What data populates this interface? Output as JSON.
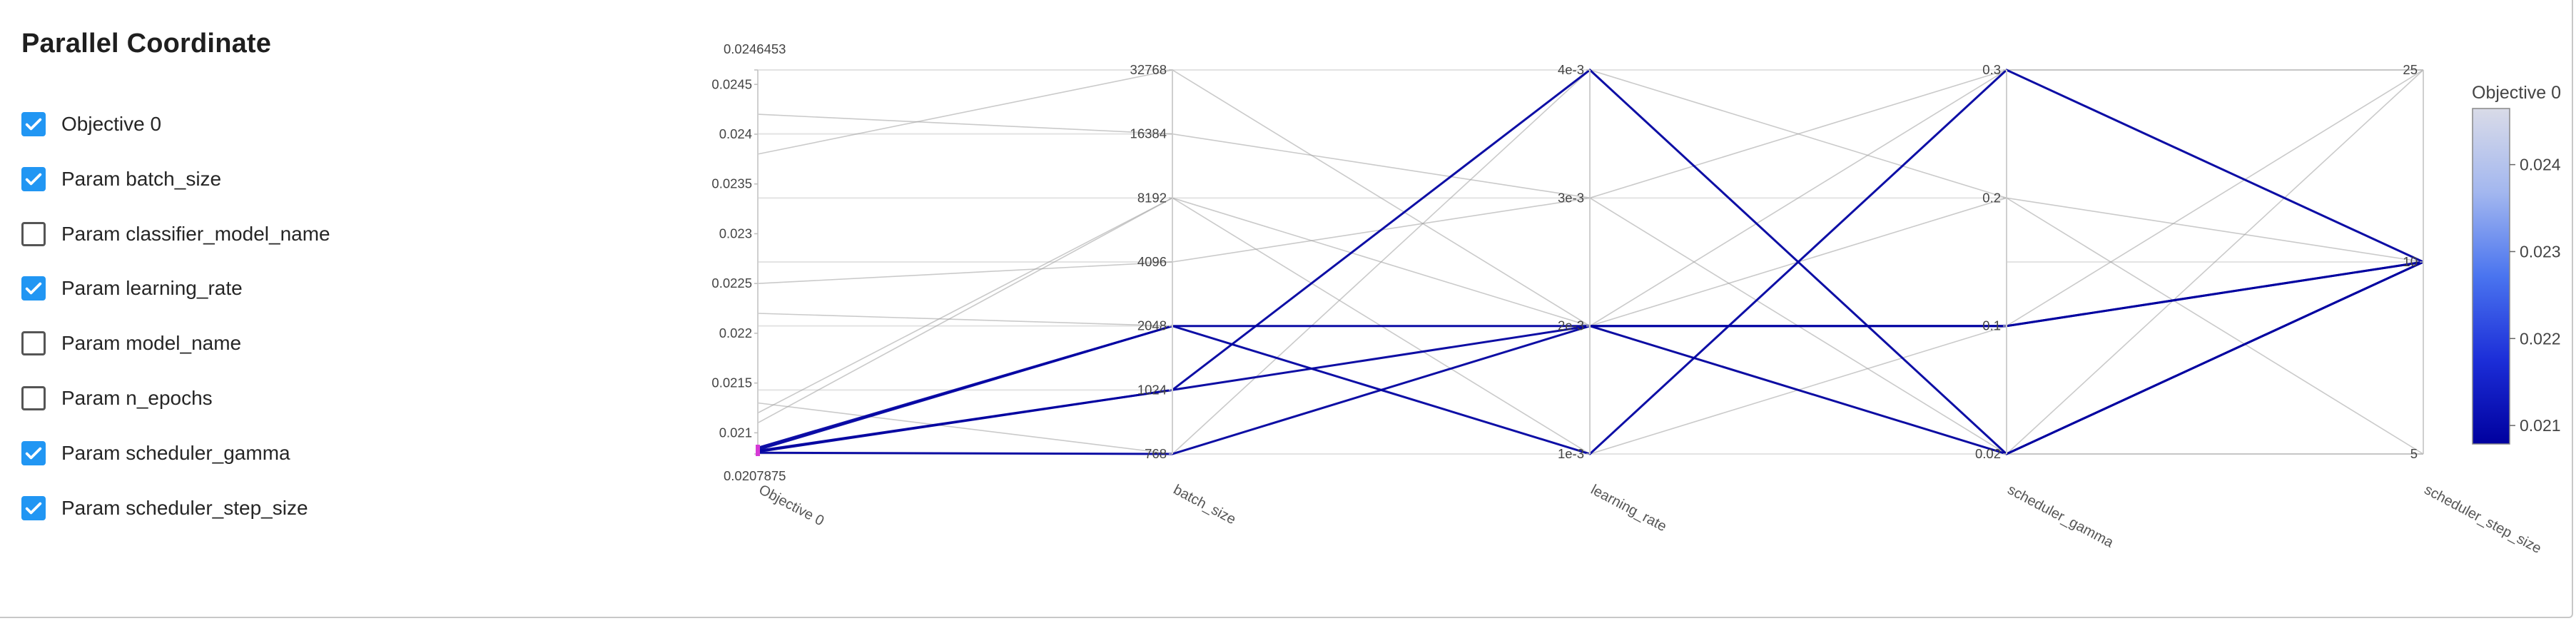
{
  "panel": {
    "title": "Parallel Coordinate"
  },
  "params": [
    {
      "label": "Objective 0",
      "checked": true
    },
    {
      "label": "Param batch_size",
      "checked": true
    },
    {
      "label": "Param classifier_model_name",
      "checked": false
    },
    {
      "label": "Param learning_rate",
      "checked": true
    },
    {
      "label": "Param model_name",
      "checked": false
    },
    {
      "label": "Param n_epochs",
      "checked": false
    },
    {
      "label": "Param scheduler_gamma",
      "checked": true
    },
    {
      "label": "Param scheduler_step_size",
      "checked": true
    }
  ],
  "colors": {
    "checkbox_checked": "#2196f3",
    "axis": "#cfcfcf",
    "colorscale": [
      "#00009e",
      "#1c2ed8",
      "#4a74ef",
      "#a3b7ef",
      "#d9dbe8"
    ]
  },
  "chart_data": {
    "type": "parallel_coordinates",
    "axes": [
      {
        "label": "Objective 0",
        "scale": "linear",
        "range": [
          0.0207875,
          0.0246453
        ],
        "ticks": [
          "0.0246453",
          "0.0245",
          "0.024",
          "0.0235",
          "0.023",
          "0.0225",
          "0.022",
          "0.0215",
          "0.021",
          "0.0207875"
        ],
        "tick_values": [
          0.0246453,
          0.0245,
          0.024,
          0.0235,
          0.023,
          0.0225,
          0.022,
          0.0215,
          0.021,
          0.0207875
        ]
      },
      {
        "label": "batch_size",
        "scale": "categorical",
        "ticks": [
          "768",
          "1024",
          "2048",
          "4096",
          "8192",
          "16384",
          "32768"
        ]
      },
      {
        "label": "learning_rate",
        "scale": "categorical",
        "ticks": [
          "1e-3",
          "2e-3",
          "3e-3",
          "4e-3"
        ]
      },
      {
        "label": "scheduler_gamma",
        "scale": "categorical",
        "ticks": [
          "0.02",
          "0.1",
          "0.2",
          "0.3"
        ]
      },
      {
        "label": "scheduler_step_size",
        "scale": "categorical",
        "ticks": [
          "5",
          "10",
          "25"
        ]
      }
    ],
    "colorbar": {
      "title": "Objective 0",
      "ticks": [
        0.024,
        0.023,
        0.022,
        0.021
      ],
      "range": [
        0.0207875,
        0.0246453
      ]
    },
    "trials": [
      {
        "objective": 0.02085,
        "batch_size": "2048",
        "learning_rate": "2e-3",
        "scheduler_gamma": "0.1",
        "scheduler_step_size": "10"
      },
      {
        "objective": 0.02083,
        "batch_size": "2048",
        "learning_rate": "1e-3",
        "scheduler_gamma": "0.3",
        "scheduler_step_size": "10"
      },
      {
        "objective": 0.02082,
        "batch_size": "1024",
        "learning_rate": "4e-3",
        "scheduler_gamma": "0.02",
        "scheduler_step_size": "10"
      },
      {
        "objective": 0.02081,
        "batch_size": "1024",
        "learning_rate": "2e-3",
        "scheduler_gamma": "0.02",
        "scheduler_step_size": "10"
      },
      {
        "objective": 0.0208,
        "batch_size": "768",
        "learning_rate": "2e-3",
        "scheduler_gamma": "0.1",
        "scheduler_step_size": "10"
      },
      {
        "objective": 0.0242,
        "batch_size": "16384",
        "learning_rate": "3e-3",
        "scheduler_gamma": "0.02",
        "scheduler_step_size": "5"
      },
      {
        "objective": 0.0238,
        "batch_size": "32768",
        "learning_rate": "2e-3",
        "scheduler_gamma": "0.2",
        "scheduler_step_size": "10"
      },
      {
        "objective": 0.0225,
        "batch_size": "4096",
        "learning_rate": "3e-3",
        "scheduler_gamma": "0.3",
        "scheduler_step_size": "25"
      },
      {
        "objective": 0.0222,
        "batch_size": "2048",
        "learning_rate": "2e-3",
        "scheduler_gamma": "0.02",
        "scheduler_step_size": "25"
      },
      {
        "objective": 0.0212,
        "batch_size": "8192",
        "learning_rate": "2e-3",
        "scheduler_gamma": "0.3",
        "scheduler_step_size": "10"
      },
      {
        "objective": 0.0213,
        "batch_size": "768",
        "learning_rate": "4e-3",
        "scheduler_gamma": "0.2",
        "scheduler_step_size": "5"
      },
      {
        "objective": 0.0211,
        "batch_size": "8192",
        "learning_rate": "1e-3",
        "scheduler_gamma": "0.1",
        "scheduler_step_size": "25"
      }
    ]
  }
}
